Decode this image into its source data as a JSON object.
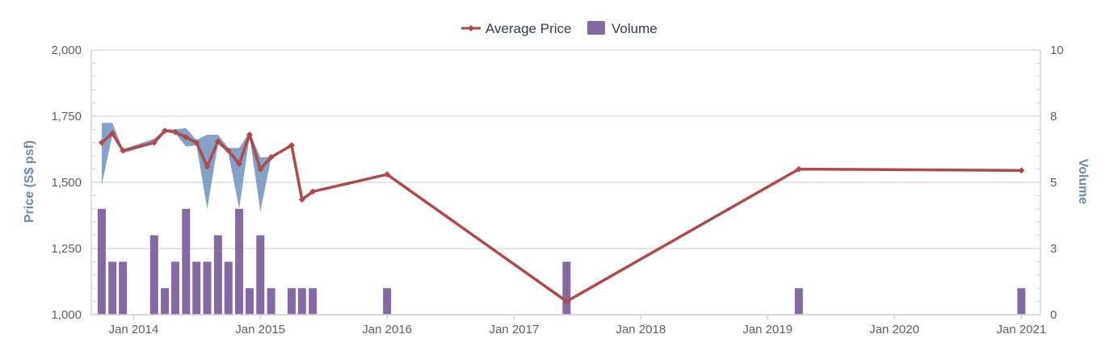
{
  "legend": {
    "price_label": "Average Price",
    "volume_label": "Volume"
  },
  "colors": {
    "price_line": "#b04a4a",
    "volume_bar": "#8469a3",
    "range_band": "#7d9cc4",
    "grid": "#d9dde3",
    "axis_title": "#6b8bb0"
  },
  "chart_data": {
    "type": "line",
    "x_axis": {
      "type": "datetime",
      "min": "2013-09-01",
      "max": "2021-02-25",
      "ticks": [
        {
          "label": "Jan 2014",
          "date": "2014-01-01"
        },
        {
          "label": "Jan 2015",
          "date": "2015-01-01"
        },
        {
          "label": "Jan 2016",
          "date": "2016-01-01"
        },
        {
          "label": "Jan 2017",
          "date": "2017-01-01"
        },
        {
          "label": "Jan 2018",
          "date": "2018-01-01"
        },
        {
          "label": "Jan 2019",
          "date": "2019-01-01"
        },
        {
          "label": "Jan 2020",
          "date": "2020-01-01"
        },
        {
          "label": "Jan 2021",
          "date": "2021-01-01"
        }
      ]
    },
    "y_axis_left": {
      "title": "Price (S$ psf)",
      "min": 1000,
      "max": 2000,
      "ticks": [
        "1,000",
        "1,250",
        "1,500",
        "1,750",
        "2,000"
      ],
      "tick_values": [
        1000,
        1250,
        1500,
        1750,
        2000
      ]
    },
    "y_axis_right": {
      "title": "Volume",
      "min": 0,
      "max": 10,
      "ticks": [
        "0",
        "3",
        "5",
        "8",
        "10"
      ],
      "tick_values": [
        0,
        2.5,
        5,
        7.5,
        10
      ]
    },
    "grid": true,
    "legend_position": "top-center",
    "series": [
      {
        "name": "Average Price",
        "type": "line",
        "points": [
          {
            "date": "2013-10-01",
            "value": 1650
          },
          {
            "date": "2013-11-01",
            "value": 1685
          },
          {
            "date": "2013-12-01",
            "value": 1620
          },
          {
            "date": "2014-03-01",
            "value": 1650
          },
          {
            "date": "2014-04-01",
            "value": 1695
          },
          {
            "date": "2014-05-01",
            "value": 1690
          },
          {
            "date": "2014-06-01",
            "value": 1670
          },
          {
            "date": "2014-07-01",
            "value": 1650
          },
          {
            "date": "2014-08-01",
            "value": 1560
          },
          {
            "date": "2014-09-01",
            "value": 1655
          },
          {
            "date": "2014-10-01",
            "value": 1620
          },
          {
            "date": "2014-11-01",
            "value": 1570
          },
          {
            "date": "2014-12-01",
            "value": 1680
          },
          {
            "date": "2015-01-01",
            "value": 1550
          },
          {
            "date": "2015-02-01",
            "value": 1595
          },
          {
            "date": "2015-04-01",
            "value": 1640
          },
          {
            "date": "2015-05-01",
            "value": 1435
          },
          {
            "date": "2015-06-01",
            "value": 1465
          },
          {
            "date": "2016-01-01",
            "value": 1530
          },
          {
            "date": "2017-06-01",
            "value": 1050
          },
          {
            "date": "2019-04-01",
            "value": 1550
          },
          {
            "date": "2021-01-01",
            "value": 1545
          }
        ]
      },
      {
        "name": "Volume",
        "type": "bar",
        "points": [
          {
            "date": "2013-10-01",
            "value": 4
          },
          {
            "date": "2013-11-01",
            "value": 2
          },
          {
            "date": "2013-12-01",
            "value": 2
          },
          {
            "date": "2014-03-01",
            "value": 3
          },
          {
            "date": "2014-04-01",
            "value": 1
          },
          {
            "date": "2014-05-01",
            "value": 2
          },
          {
            "date": "2014-06-01",
            "value": 4
          },
          {
            "date": "2014-07-01",
            "value": 2
          },
          {
            "date": "2014-08-01",
            "value": 2
          },
          {
            "date": "2014-09-01",
            "value": 3
          },
          {
            "date": "2014-10-01",
            "value": 2
          },
          {
            "date": "2014-11-01",
            "value": 4
          },
          {
            "date": "2014-12-01",
            "value": 1
          },
          {
            "date": "2015-01-01",
            "value": 3
          },
          {
            "date": "2015-02-01",
            "value": 1
          },
          {
            "date": "2015-04-01",
            "value": 1
          },
          {
            "date": "2015-05-01",
            "value": 1
          },
          {
            "date": "2015-06-01",
            "value": 1
          },
          {
            "date": "2016-01-01",
            "value": 1
          },
          {
            "date": "2017-06-01",
            "value": 2
          },
          {
            "date": "2019-04-01",
            "value": 1
          },
          {
            "date": "2021-01-01",
            "value": 1
          }
        ]
      },
      {
        "type": "arearange",
        "points": [
          {
            "date": "2013-10-01",
            "low": 1490,
            "high": 1725
          },
          {
            "date": "2013-11-01",
            "low": 1680,
            "high": 1725
          },
          {
            "date": "2013-12-01",
            "low": 1610,
            "high": 1625
          },
          {
            "date": "2014-03-01",
            "low": 1645,
            "high": 1665
          },
          {
            "date": "2014-04-01",
            "low": 1690,
            "high": 1700
          },
          {
            "date": "2014-05-01",
            "low": 1685,
            "high": 1700
          },
          {
            "date": "2014-06-01",
            "low": 1635,
            "high": 1705
          },
          {
            "date": "2014-07-01",
            "low": 1640,
            "high": 1660
          },
          {
            "date": "2014-08-01",
            "low": 1400,
            "high": 1680
          },
          {
            "date": "2014-09-01",
            "low": 1645,
            "high": 1680
          },
          {
            "date": "2014-10-01",
            "low": 1610,
            "high": 1630
          },
          {
            "date": "2014-11-01",
            "low": 1400,
            "high": 1630
          },
          {
            "date": "2014-12-01",
            "low": 1675,
            "high": 1690
          },
          {
            "date": "2015-01-01",
            "low": 1390,
            "high": 1595
          },
          {
            "date": "2015-02-01",
            "low": 1590,
            "high": 1595
          }
        ]
      }
    ]
  }
}
